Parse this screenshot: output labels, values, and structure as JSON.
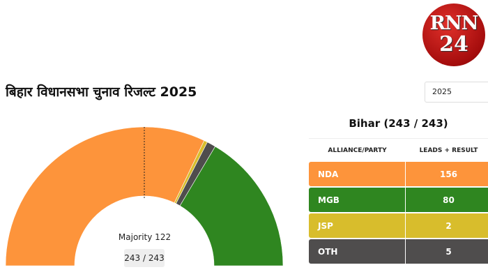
{
  "title": "बिहार विधानसभा चुनाव रिजल्ट 2025",
  "logo": {
    "line1": "RNN",
    "line2": "24"
  },
  "year_select": {
    "value": "2025"
  },
  "summary": {
    "title": "Bihar (243 / 243)",
    "headers": [
      "ALLIANCE/PARTY",
      "LEADS + RESULT"
    ],
    "rows": [
      {
        "party": "NDA",
        "seats": "156",
        "color": "#fd943b"
      },
      {
        "party": "MGB",
        "seats": "80",
        "color": "#2f8620"
      },
      {
        "party": "JSP",
        "seats": "2",
        "color": "#d8bd2c"
      },
      {
        "party": "OTH",
        "seats": "5",
        "color": "#4f4d4d"
      }
    ]
  },
  "chart_data": {
    "type": "pie",
    "subtype": "semi-donut",
    "total": 243,
    "majority": 122,
    "majority_label": "Majority 122",
    "count_label": "243 / 243",
    "slices": [
      {
        "name": "NDA",
        "value": 156,
        "color": "#fd943b"
      },
      {
        "name": "JSP",
        "value": 2,
        "color": "#d8bd2c"
      },
      {
        "name": "OTH",
        "value": 5,
        "color": "#4f4d4d"
      },
      {
        "name": "MGB",
        "value": 80,
        "color": "#2f8620"
      }
    ]
  }
}
